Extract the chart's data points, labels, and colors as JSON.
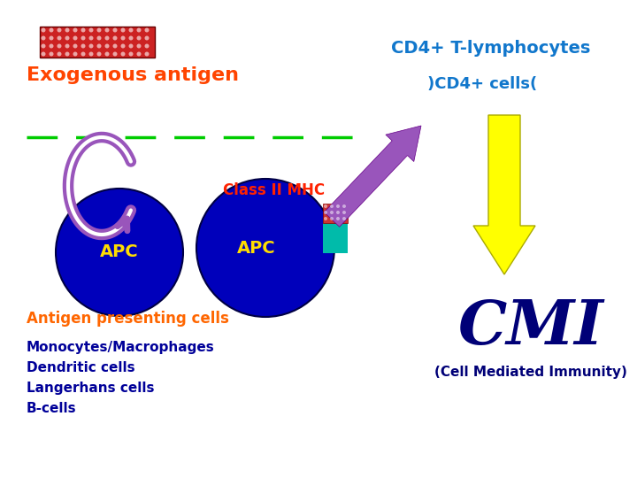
{
  "bg_color": "#ffffff",
  "exogenous_text": "Exogenous antigen",
  "exogenous_color": "#ff4400",
  "cd4_line1": "CD4+ T-lymphocytes",
  "cd4_line2": ")CD4+ cells(",
  "cd4_color": "#1177cc",
  "class_ii_text": "Class II MHC",
  "class_ii_color": "#ff2200",
  "apc_text": "APC",
  "apc_color": "#ffdd00",
  "apc_circle_color": "#0000bb",
  "cmi_text": "CMI",
  "cmi_color": "#000077",
  "cmi_sub_text": "(Cell Mediated Immunity)",
  "cmi_sub_color": "#000077",
  "antigen_cells_text": "Antigen presenting cells",
  "antigen_cells_color": "#ff6600",
  "list_items": [
    "Monocytes/Macrophages",
    "Dendritic cells",
    "Langerhans cells",
    "B-cells"
  ],
  "list_color": "#000099",
  "dashed_line_color": "#00cc00",
  "arrow_purple": "#9955bb",
  "antigen_rect_color": "#cc2222",
  "mhc_teal_color": "#00bbaa",
  "small_ant_color": "#cc3333"
}
